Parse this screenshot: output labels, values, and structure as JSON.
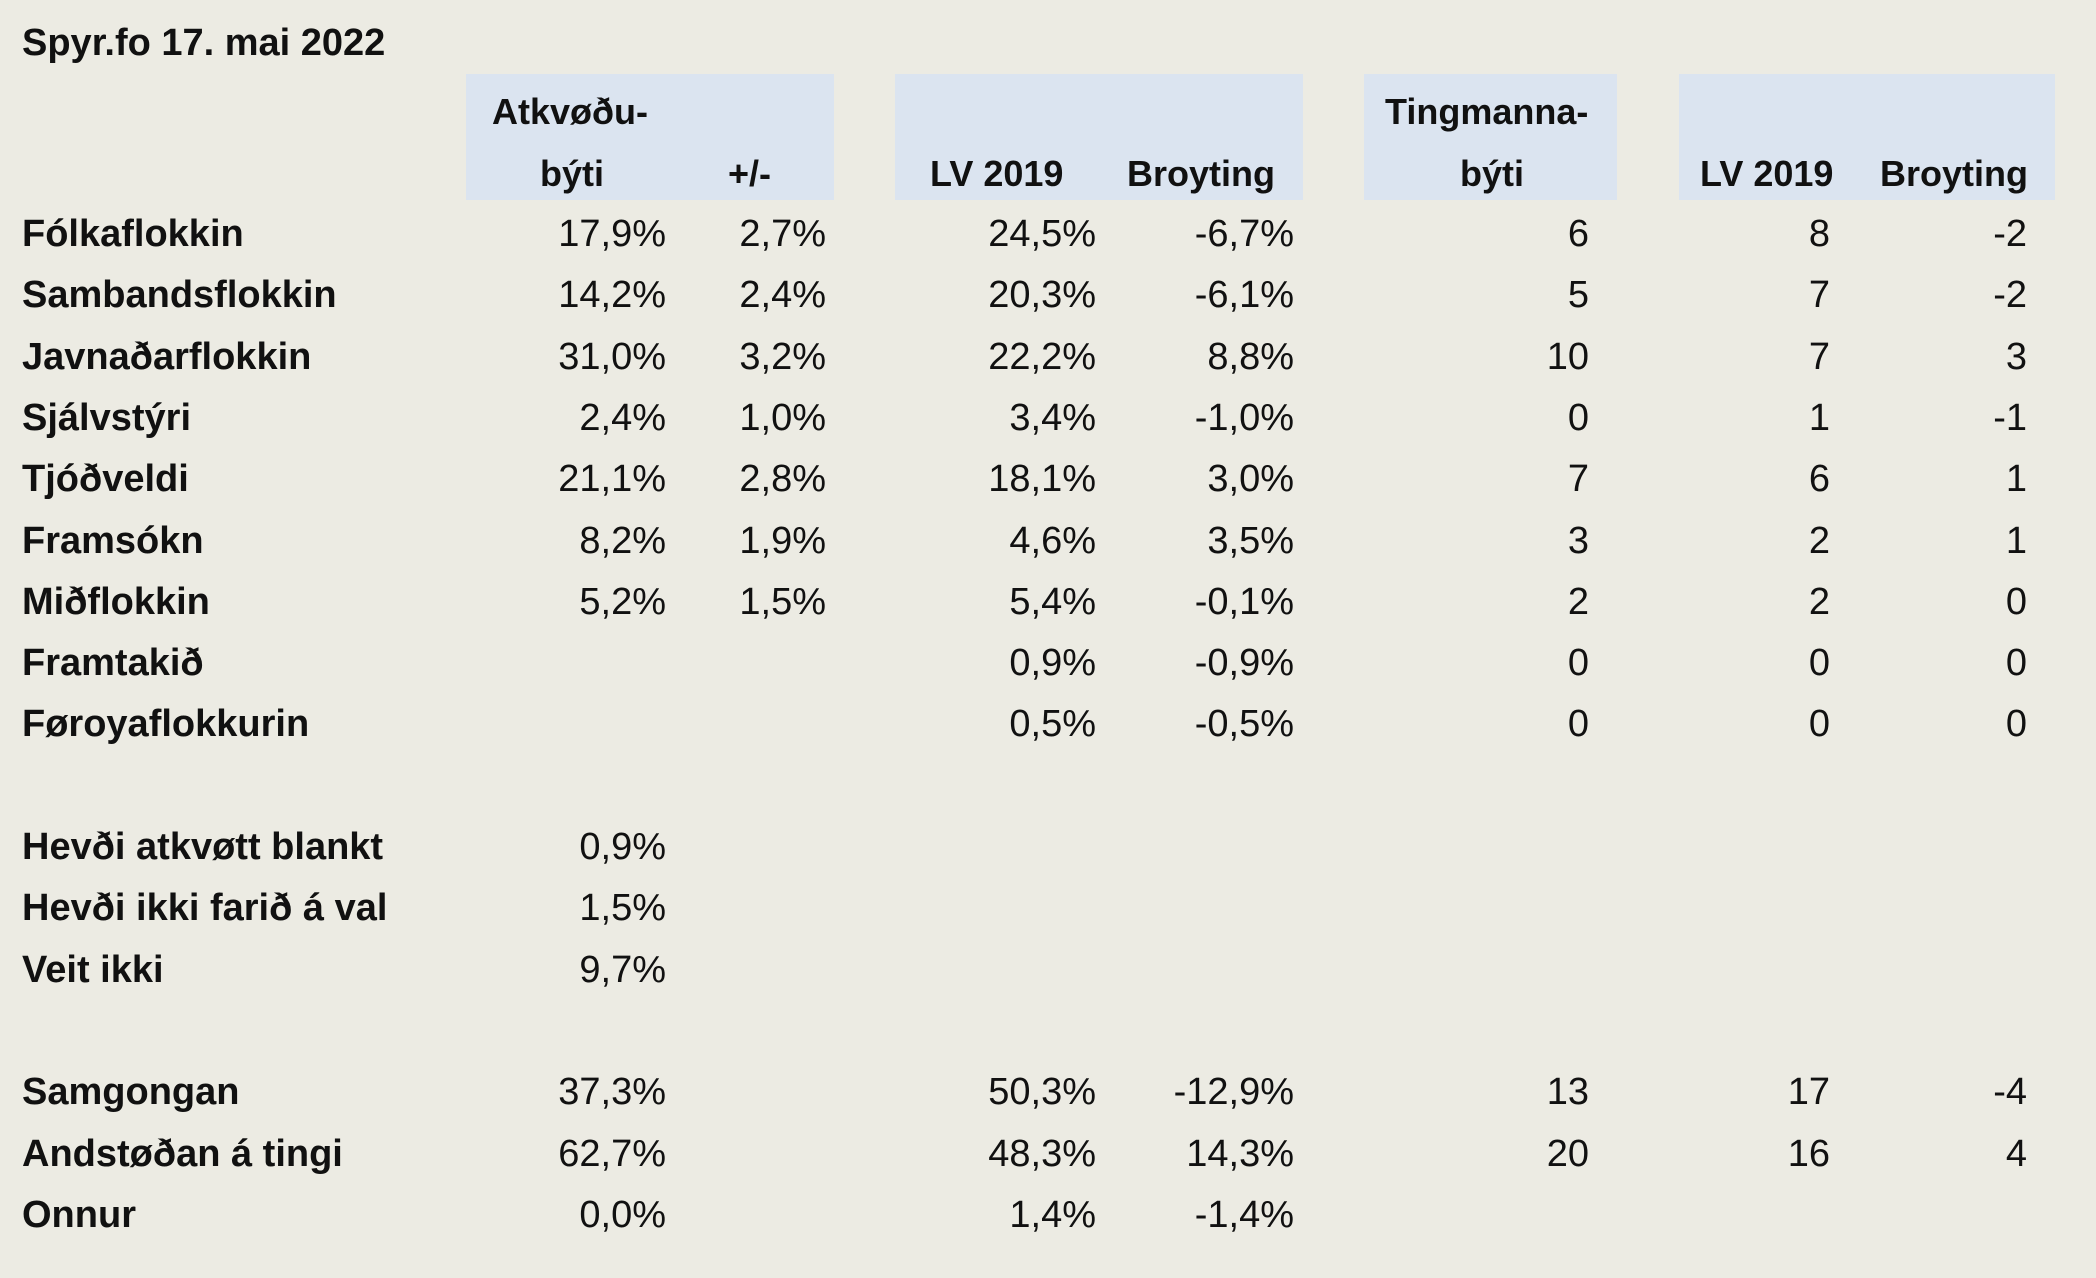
{
  "title": "Spyr.fo 17. mai 2022",
  "headers": {
    "atkvodu_line1": "Atkvøðu-",
    "atkvodu_line2": "býti",
    "plusminus": "+/-",
    "lv2019_a": "LV 2019",
    "broyting_a": "Broyting",
    "tingmanna_line1": "Tingmanna-",
    "tingmanna_line2": "býti",
    "lv2019_b": "LV 2019",
    "broyting_b": "Broyting"
  },
  "rows": [
    {
      "label": "Fólkaflokkin",
      "atk": "17,9%",
      "pm": "2,7%",
      "lv": "24,5%",
      "br": "-6,7%",
      "ting": "6",
      "lv2": "8",
      "br2": "-2"
    },
    {
      "label": "Sambandsflokkin",
      "atk": "14,2%",
      "pm": "2,4%",
      "lv": "20,3%",
      "br": "-6,1%",
      "ting": "5",
      "lv2": "7",
      "br2": "-2"
    },
    {
      "label": "Javnaðarflokkin",
      "atk": "31,0%",
      "pm": "3,2%",
      "lv": "22,2%",
      "br": "8,8%",
      "ting": "10",
      "lv2": "7",
      "br2": "3"
    },
    {
      "label": "Sjálvstýri",
      "atk": "2,4%",
      "pm": "1,0%",
      "lv": "3,4%",
      "br": "-1,0%",
      "ting": "0",
      "lv2": "1",
      "br2": "-1"
    },
    {
      "label": "Tjóðveldi",
      "atk": "21,1%",
      "pm": "2,8%",
      "lv": "18,1%",
      "br": "3,0%",
      "ting": "7",
      "lv2": "6",
      "br2": "1"
    },
    {
      "label": "Framsókn",
      "atk": "8,2%",
      "pm": "1,9%",
      "lv": "4,6%",
      "br": "3,5%",
      "ting": "3",
      "lv2": "2",
      "br2": "1"
    },
    {
      "label": "Miðflokkin",
      "atk": "5,2%",
      "pm": "1,5%",
      "lv": "5,4%",
      "br": "-0,1%",
      "ting": "2",
      "lv2": "2",
      "br2": "0"
    },
    {
      "label": "Framtakið",
      "atk": "",
      "pm": "",
      "lv": "0,9%",
      "br": "-0,9%",
      "ting": "0",
      "lv2": "0",
      "br2": "0"
    },
    {
      "label": "Føroyaflokkurin",
      "atk": "",
      "pm": "",
      "lv": "0,5%",
      "br": "-0,5%",
      "ting": "0",
      "lv2": "0",
      "br2": "0"
    },
    {
      "label": "",
      "atk": "",
      "pm": "",
      "lv": "",
      "br": "",
      "ting": "",
      "lv2": "",
      "br2": ""
    },
    {
      "label": "Hevði atkvøtt blankt",
      "atk": "0,9%",
      "pm": "",
      "lv": "",
      "br": "",
      "ting": "",
      "lv2": "",
      "br2": ""
    },
    {
      "label": "Hevði ikki farið á val",
      "atk": "1,5%",
      "pm": "",
      "lv": "",
      "br": "",
      "ting": "",
      "lv2": "",
      "br2": ""
    },
    {
      "label": "Veit ikki",
      "atk": "9,7%",
      "pm": "",
      "lv": "",
      "br": "",
      "ting": "",
      "lv2": "",
      "br2": ""
    },
    {
      "label": "",
      "atk": "",
      "pm": "",
      "lv": "",
      "br": "",
      "ting": "",
      "lv2": "",
      "br2": ""
    },
    {
      "label": "Samgongan",
      "atk": "37,3%",
      "pm": "",
      "lv": "50,3%",
      "br": "-12,9%",
      "ting": "13",
      "lv2": "17",
      "br2": "-4"
    },
    {
      "label": "Andstøðan á tingi",
      "atk": "62,7%",
      "pm": "",
      "lv": "48,3%",
      "br": "14,3%",
      "ting": "20",
      "lv2": "16",
      "br2": "4"
    },
    {
      "label": "Onnur",
      "atk": "0,0%",
      "pm": "",
      "lv": "1,4%",
      "br": "-1,4%",
      "ting": "",
      "lv2": "",
      "br2": ""
    }
  ]
}
